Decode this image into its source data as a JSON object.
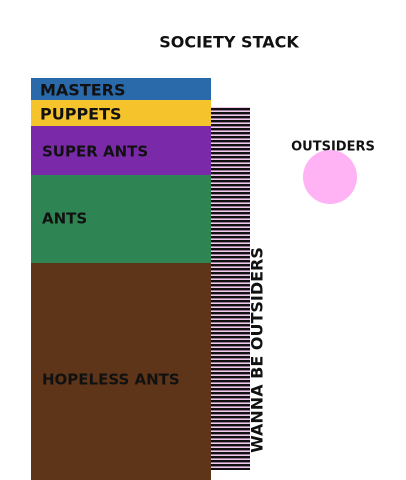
{
  "title": "SOCIETY STACK",
  "layers": [
    {
      "label": "MASTERS"
    },
    {
      "label": "PUPPETS"
    },
    {
      "label": "SUPER ANTS"
    },
    {
      "label": "ANTS"
    },
    {
      "label": "HOPELESS ANTS"
    }
  ],
  "side_bar": {
    "label": "WANNA BE OUTSIDERS"
  },
  "outsiders": {
    "label": "OUTSIDERS"
  }
}
